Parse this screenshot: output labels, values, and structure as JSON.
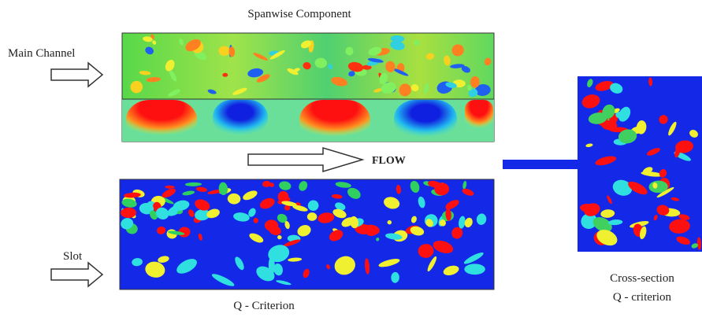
{
  "panels": {
    "top": {
      "title": "Spanwise Component"
    },
    "bottom": {
      "caption": "Q - Criterion"
    },
    "right": {
      "caption_line1": "Cross-section",
      "caption_line2": "Q - criterion"
    }
  },
  "labels": {
    "main_channel": "Main Channel",
    "flow": "FLOW",
    "slot": "Slot"
  }
}
